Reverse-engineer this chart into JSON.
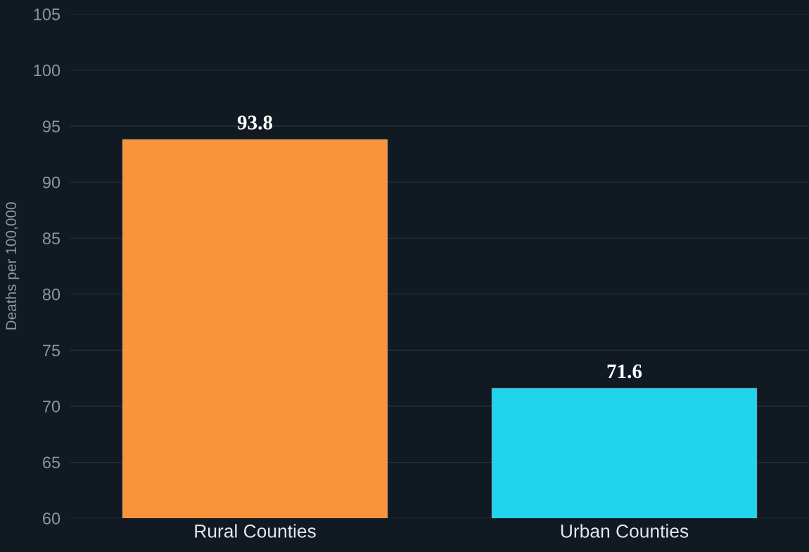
{
  "chart_data": {
    "type": "bar",
    "ylabel": "Deaths per 100,000",
    "categories": [
      "Rural Counties",
      "Urban Counties"
    ],
    "values": [
      93.8,
      71.6
    ],
    "colors": [
      "#f9943c",
      "#22d3ee"
    ],
    "ylim": [
      60,
      105
    ],
    "yticks": [
      60,
      65,
      70,
      75,
      80,
      85,
      90,
      95,
      100,
      105
    ],
    "grid": "y",
    "data_labels": true
  }
}
